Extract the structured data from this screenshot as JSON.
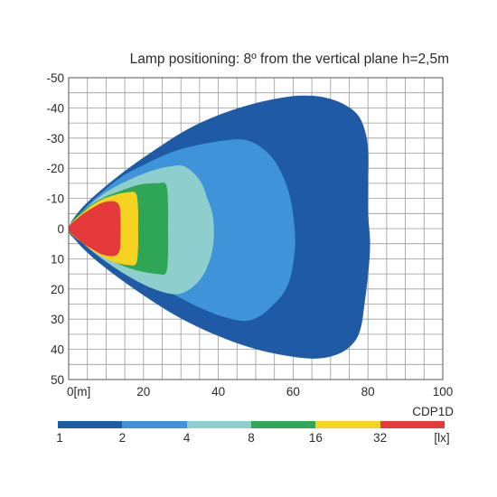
{
  "chart_data": {
    "type": "heatmap",
    "title": "Lamp positioning: 8º from the vertical plane h=2,5m",
    "x_ticks": [
      "0[m]",
      "20",
      "40",
      "60",
      "80",
      "100"
    ],
    "y_ticks": [
      "-50",
      "-40",
      "-30",
      "-20",
      "-10",
      "0",
      "10",
      "20",
      "30",
      "40",
      "50"
    ],
    "xlim": [
      0,
      100
    ],
    "ylim": [
      -50,
      50
    ],
    "y_axis": "inverted",
    "grid": true,
    "model_label": "CDP1D",
    "legend": {
      "unit": "[lx]",
      "labels": [
        "1",
        "2",
        "4",
        "8",
        "16",
        "32"
      ],
      "colors": [
        "#1f5aa6",
        "#3f93d8",
        "#8ecfce",
        "#2fa655",
        "#f5d320",
        "#e5393b"
      ]
    },
    "zones": [
      {
        "lux_min": 1,
        "color": "#1f5aa6",
        "extent_x_m": 80,
        "extent_y_m": [
          -44,
          43
        ]
      },
      {
        "lux_min": 2,
        "color": "#3f93d8",
        "extent_x_m": 60,
        "extent_y_m": [
          -30,
          30
        ]
      },
      {
        "lux_min": 4,
        "color": "#8ecfce",
        "extent_x_m": 39,
        "extent_y_m": [
          -21,
          22
        ]
      },
      {
        "lux_min": 8,
        "color": "#2fa655",
        "extent_x_m": 26,
        "extent_y_m": [
          -15,
          15
        ]
      },
      {
        "lux_min": 16,
        "color": "#f5d320",
        "extent_x_m": 18.5,
        "extent_y_m": [
          -12,
          12
        ]
      },
      {
        "lux_min": 32,
        "color": "#e5393b",
        "extent_x_m": 13.5,
        "extent_y_m": [
          -9,
          9
        ]
      }
    ]
  }
}
